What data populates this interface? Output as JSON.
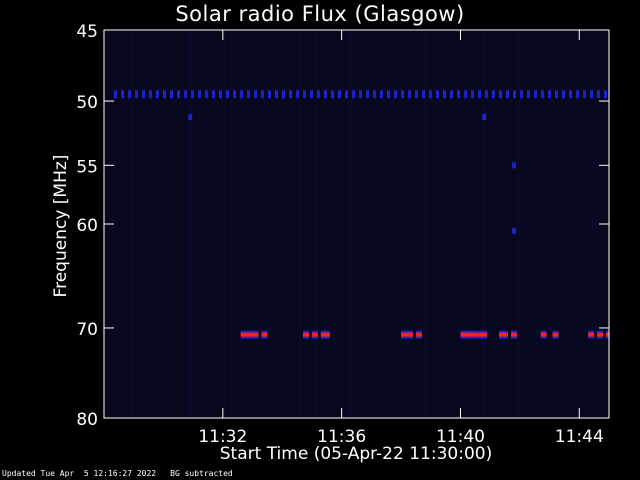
{
  "chart_data": {
    "type": "heatmap",
    "title": "Solar radio Flux (Glasgow)",
    "xlabel": "Start Time (05-Apr-22 11:30:00)",
    "ylabel": "Frequency [MHz]",
    "x_tick_labels": [
      "11:32",
      "11:36",
      "11:40",
      "11:44"
    ],
    "x_tick_minutes": [
      2,
      6,
      10,
      14
    ],
    "x_range_minutes": [
      -2,
      15
    ],
    "y_tick_labels": [
      "45",
      "50",
      "55",
      "60",
      "70",
      "80"
    ],
    "y_ticks": [
      45,
      50,
      55,
      60,
      70,
      80
    ],
    "yscale": "log",
    "ylim": [
      45,
      80
    ],
    "y_inverted": true,
    "colors": {
      "background": "#000000",
      "plot_background": "#08081c",
      "low": "#0a0a3a",
      "mid": "#2020cc",
      "high": "#ff2020",
      "axes": "#ffffff"
    },
    "features": [
      {
        "kind": "interference_line",
        "freq_mhz": 49.5,
        "intensity": "medium"
      },
      {
        "kind": "interference_line",
        "freq_mhz": 70.7,
        "intensity": "high",
        "segments_minutes": [
          [
            2.6,
            2.9
          ],
          [
            2.9,
            3.2
          ],
          [
            3.3,
            3.5
          ],
          [
            4.7,
            4.9
          ],
          [
            5.0,
            5.2
          ],
          [
            5.3,
            5.6
          ],
          [
            8.0,
            8.4
          ],
          [
            8.5,
            8.7
          ],
          [
            10.0,
            10.6
          ],
          [
            10.6,
            10.9
          ],
          [
            11.3,
            11.6
          ],
          [
            11.7,
            11.9
          ],
          [
            12.7,
            12.9
          ],
          [
            13.1,
            13.3
          ],
          [
            14.3,
            14.5
          ],
          [
            14.6,
            14.8
          ],
          [
            14.9,
            15.0
          ]
        ]
      },
      {
        "kind": "spot",
        "minute": 0.9,
        "freq_mhz": 51.2
      },
      {
        "kind": "spot",
        "minute": 10.8,
        "freq_mhz": 51.2
      },
      {
        "kind": "spot",
        "minute": 11.8,
        "freq_mhz": 55.0
      },
      {
        "kind": "spot",
        "minute": 11.8,
        "freq_mhz": 60.6
      }
    ]
  },
  "footer": {
    "updated": "Updated Tue Apr  5 12:16:27 2022",
    "note": "BG subtracted"
  }
}
